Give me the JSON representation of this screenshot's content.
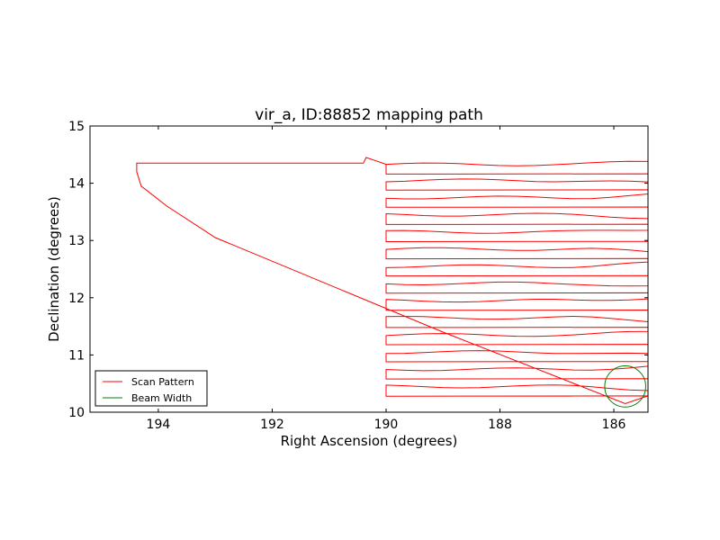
{
  "chart_data": {
    "type": "line",
    "title": "vir_a, ID:88852 mapping path",
    "xlabel": "Right Ascension (degrees)",
    "ylabel": "Declination (degrees)",
    "xlim": [
      195.2,
      185.4
    ],
    "ylim": [
      10.0,
      15.0
    ],
    "x_ticks": [
      194,
      192,
      190,
      188,
      186
    ],
    "y_ticks": [
      10,
      11,
      12,
      13,
      14,
      15
    ],
    "grid": false,
    "legend_position": "lower-left",
    "series": [
      {
        "name": "Scan Pattern",
        "color": "#ff0000",
        "kind": "raster-scan",
        "x_left": 190.0,
        "x_right": 185.4,
        "row_dec": [
          14.33,
          14.05,
          13.75,
          13.45,
          13.15,
          12.85,
          12.55,
          12.25,
          11.95,
          11.65,
          11.35,
          11.05,
          10.75,
          10.45
        ],
        "row_height": 0.17,
        "slew": [
          [
            185.8,
            10.15
          ],
          [
            189.0,
            11.4
          ],
          [
            193.0,
            13.05
          ],
          [
            193.85,
            13.6
          ],
          [
            194.3,
            13.95
          ],
          [
            194.38,
            14.2
          ],
          [
            194.38,
            14.35
          ],
          [
            190.4,
            14.35
          ],
          [
            190.35,
            14.45
          ],
          [
            190.2,
            14.4
          ],
          [
            190.0,
            14.33
          ]
        ]
      },
      {
        "name": "Beam Width",
        "color": "#008000",
        "kind": "circle",
        "center": [
          185.8,
          10.45
        ],
        "radius_deg": 0.36
      }
    ]
  }
}
